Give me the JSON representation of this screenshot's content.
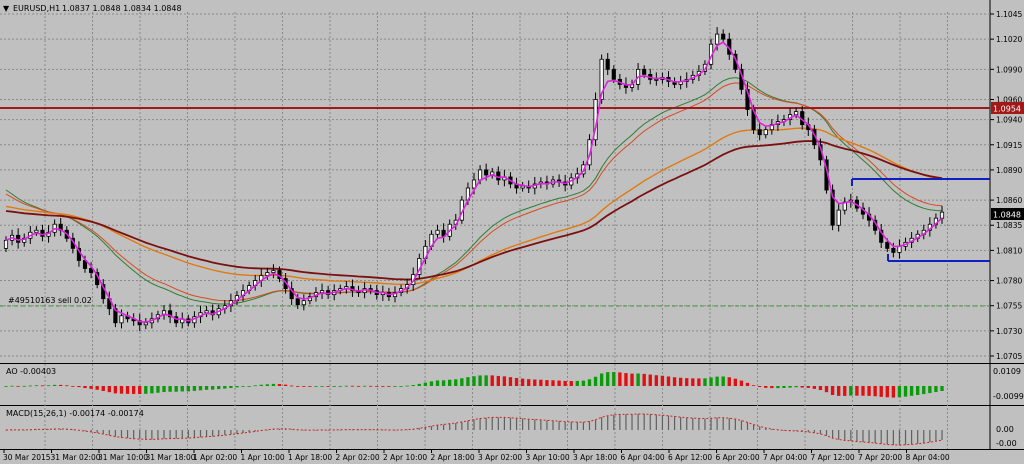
{
  "header": {
    "symbol": "EURUSD,H1",
    "quote": "1.0837 1.0848 1.0834 1.0848"
  },
  "main_chart": {
    "price_axis": [
      "1.1045",
      "1.1020",
      "1.0990",
      "1.0960",
      "1.0940",
      "1.0915",
      "1.0890",
      "1.0860",
      "1.0835",
      "1.0810",
      "1.0780",
      "1.0755",
      "1.0730",
      "1.0705"
    ],
    "resistance_label": "1.0954",
    "current_price_label": "1.0848",
    "order_label": "#49510163 sell 0.02",
    "colors": {
      "background": "#c0c0c0",
      "grid": "#8a8a8a",
      "bull": "#ffffff",
      "bear": "#000000",
      "resistance": "#a01818",
      "box": "#1020c0",
      "ema_fast": "#e020e0"
    }
  },
  "ao_panel": {
    "label": "AO -0.00403",
    "axis": [
      "0.0109",
      "-0.00993"
    ]
  },
  "macd_panel": {
    "label": "MACD(15,26,1) -0.00174 -0.00174",
    "axis": [
      "0.00",
      "-0.00"
    ]
  },
  "time_axis": [
    "30 Mar 2015",
    "31 Mar 02:00",
    "31 Mar 10:00",
    "31 Mar 18:00",
    "1 Apr 02:00",
    "1 Apr 10:00",
    "1 Apr 18:00",
    "2 Apr 02:00",
    "2 Apr 10:00",
    "2 Apr 18:00",
    "3 Apr 02:00",
    "3 Apr 10:00",
    "3 Apr 18:00",
    "6 Apr 04:00",
    "6 Apr 12:00",
    "6 Apr 20:00",
    "7 Apr 04:00",
    "7 Apr 12:00",
    "7 Apr 20:00",
    "8 Apr 04:00"
  ],
  "chart_data": {
    "type": "candlestick",
    "title": "EURUSD,H1",
    "ylim": [
      1.07,
      1.105
    ],
    "close": [
      1.082,
      1.0825,
      1.0818,
      1.0822,
      1.0828,
      1.083,
      1.0824,
      1.0828,
      1.0836,
      1.083,
      1.0822,
      1.0812,
      1.08,
      1.0792,
      1.0788,
      1.0776,
      1.0762,
      1.0752,
      1.0738,
      1.0745,
      1.0742,
      1.074,
      1.0736,
      1.0738,
      1.0742,
      1.0746,
      1.075,
      1.0744,
      1.0738,
      1.0742,
      1.0738,
      1.0744,
      1.0748,
      1.075,
      1.0746,
      1.0752,
      1.0755,
      1.076,
      1.0765,
      1.077,
      1.0775,
      1.078,
      1.0785,
      1.0788,
      1.079,
      1.0782,
      1.0772,
      1.0762,
      1.0756,
      1.076,
      1.0764,
      1.0768,
      1.077,
      1.0766,
      1.077,
      1.0772,
      1.0774,
      1.077,
      1.0768,
      1.0772,
      1.077,
      1.0766,
      1.0768,
      1.0764,
      1.0768,
      1.0772,
      1.0776,
      1.0786,
      1.0802,
      1.0814,
      1.0826,
      1.083,
      1.0824,
      1.0836,
      1.084,
      1.086,
      1.0872,
      1.088,
      1.089,
      1.0885,
      1.0888,
      1.088,
      1.0883,
      1.0876,
      1.0872,
      1.0874,
      1.0872,
      1.0876,
      1.0878,
      1.0876,
      1.088,
      1.0878,
      1.0875,
      1.0882,
      1.0886,
      1.0895,
      1.092,
      1.096,
      1.1,
      1.099,
      1.098,
      1.0975,
      1.0972,
      1.0975,
      1.099,
      1.0985,
      1.098,
      1.098,
      1.0982,
      1.0978,
      1.0975,
      1.0978,
      1.098,
      1.0984,
      1.0988,
      1.0995,
      1.1015,
      1.1025,
      1.102,
      1.1005,
      1.099,
      1.097,
      1.095,
      1.093,
      1.0925,
      1.093,
      1.0935,
      1.0938,
      1.094,
      1.0945,
      1.0948,
      1.0935,
      1.093,
      1.0915,
      1.09,
      1.087,
      1.0835,
      1.085,
      1.0858,
      1.086,
      1.0852,
      1.0846,
      1.084,
      1.083,
      1.0818,
      1.0812,
      1.0808,
      1.0814,
      1.0818,
      1.0822,
      1.0826,
      1.083,
      1.0836,
      1.0842,
      1.0848
    ]
  }
}
